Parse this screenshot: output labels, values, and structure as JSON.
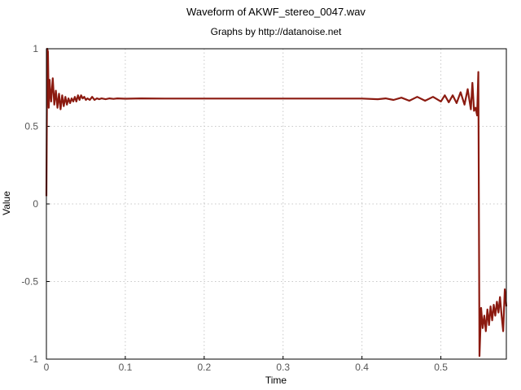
{
  "chart_data": {
    "type": "line",
    "title": "Waveform of AKWF_stereo_0047.wav",
    "subtitle": "Graphs by http://datanoise.net",
    "xlabel": "Time",
    "ylabel": "Value",
    "xlim": [
      0,
      0.583
    ],
    "ylim": [
      -1,
      1
    ],
    "x_ticks": [
      0,
      0.1,
      0.2,
      0.3,
      0.4,
      0.5
    ],
    "x_tick_labels": [
      "0",
      "0.1",
      "0.2",
      "0.3",
      "0.4",
      "0.5"
    ],
    "y_ticks": [
      1,
      0.5,
      0,
      -0.5,
      -1
    ],
    "y_tick_labels": [
      "1",
      "0.5",
      "0",
      "-0.5",
      "-1"
    ],
    "grid": true,
    "line_color": "#8b1a10",
    "series": [
      {
        "x": [
          0.0,
          0.001,
          0.002,
          0.003,
          0.004,
          0.005,
          0.006,
          0.008,
          0.01,
          0.012,
          0.014,
          0.016,
          0.018,
          0.02,
          0.022,
          0.024,
          0.026,
          0.028,
          0.03,
          0.032,
          0.034,
          0.036,
          0.038,
          0.04,
          0.042,
          0.044,
          0.046,
          0.048,
          0.05,
          0.052,
          0.055,
          0.058,
          0.061,
          0.064,
          0.067,
          0.07,
          0.075,
          0.08,
          0.085,
          0.09,
          0.1,
          0.12,
          0.15,
          0.2,
          0.25,
          0.3,
          0.35,
          0.4,
          0.42,
          0.43,
          0.44,
          0.45,
          0.46,
          0.47,
          0.48,
          0.49,
          0.5,
          0.505,
          0.51,
          0.515,
          0.52,
          0.525,
          0.53,
          0.534,
          0.538,
          0.54,
          0.542,
          0.544,
          0.546,
          0.5475,
          0.549,
          0.551,
          0.553,
          0.555,
          0.557,
          0.559,
          0.561,
          0.563,
          0.565,
          0.567,
          0.569,
          0.571,
          0.573,
          0.575,
          0.577,
          0.579,
          0.581,
          0.583
        ],
        "y": [
          0.05,
          1.0,
          0.98,
          0.62,
          0.8,
          0.72,
          0.66,
          0.81,
          0.64,
          0.73,
          0.62,
          0.71,
          0.61,
          0.7,
          0.63,
          0.69,
          0.64,
          0.68,
          0.65,
          0.68,
          0.66,
          0.69,
          0.66,
          0.7,
          0.67,
          0.7,
          0.68,
          0.69,
          0.67,
          0.68,
          0.67,
          0.69,
          0.67,
          0.68,
          0.675,
          0.68,
          0.675,
          0.68,
          0.677,
          0.68,
          0.678,
          0.68,
          0.679,
          0.679,
          0.679,
          0.679,
          0.679,
          0.679,
          0.675,
          0.68,
          0.67,
          0.685,
          0.665,
          0.69,
          0.665,
          0.69,
          0.66,
          0.7,
          0.655,
          0.7,
          0.65,
          0.72,
          0.64,
          0.74,
          0.61,
          0.78,
          0.6,
          0.62,
          0.57,
          0.85,
          -0.98,
          -0.67,
          -0.8,
          -0.72,
          -0.82,
          -0.68,
          -0.78,
          -0.66,
          -0.75,
          -0.65,
          -0.72,
          -0.63,
          -0.7,
          -0.6,
          -0.72,
          -0.82,
          -0.55,
          -0.66
        ]
      }
    ]
  }
}
